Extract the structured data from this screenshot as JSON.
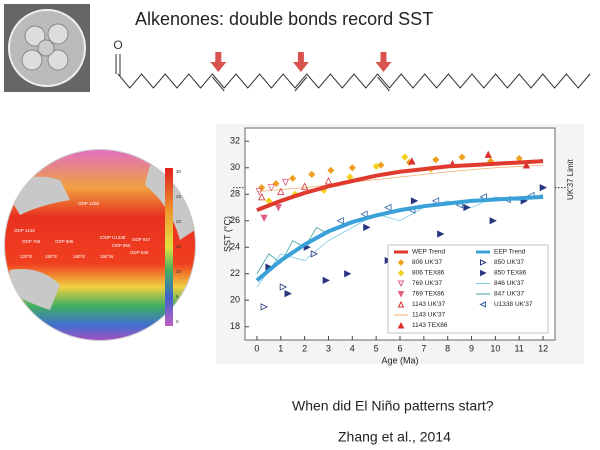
{
  "title": "Alkenones: double bonds record SST",
  "question": "When did El Niño patterns start?",
  "citation": "Zhang et al., 2014",
  "molecule_atom": "O",
  "map": {
    "labels": [
      "ODP 1208",
      "ODP 1143",
      "ODP 769",
      "ODP 806",
      "IODP U1338",
      "ODP 847",
      "ODP 850",
      "ODP 846",
      "120°E",
      "150°E",
      "180°E",
      "150°W"
    ],
    "colorbar_ticks": [
      30,
      25,
      20,
      15,
      10,
      5,
      0
    ]
  },
  "chart_data": {
    "type": "scatter",
    "x_label": "Age (Ma)",
    "y_label": "SST (°C)",
    "xlim": [
      -0.5,
      12.5
    ],
    "ylim": [
      17,
      33
    ],
    "xticks": [
      0,
      1,
      2,
      3,
      4,
      5,
      6,
      7,
      8,
      9,
      10,
      11,
      12
    ],
    "yticks": [
      18,
      20,
      22,
      24,
      26,
      28,
      30,
      32
    ],
    "limit": {
      "label": "UK′37 Limit",
      "value": 28.5
    },
    "series": [
      {
        "name": "WEP Trend",
        "color": "#e03a2f",
        "mode": "trend",
        "x": [
          0,
          1,
          2,
          3,
          4,
          5,
          6,
          7,
          8,
          9,
          10,
          11,
          12
        ],
        "values": [
          26.8,
          27.5,
          28.1,
          28.6,
          29.0,
          29.4,
          29.7,
          29.9,
          30.1,
          30.2,
          30.3,
          30.4,
          30.5
        ]
      },
      {
        "name": "806 UK′37",
        "color": "#f0a020",
        "marker": "diamond",
        "filled": true,
        "x": [
          0.2,
          0.8,
          1.5,
          2.3,
          3.1,
          4.0,
          5.2,
          6.4,
          7.5,
          8.6,
          9.8,
          11.0
        ],
        "values": [
          28.5,
          28.8,
          29.2,
          29.5,
          29.8,
          30.0,
          30.2,
          30.4,
          30.6,
          30.8,
          30.5,
          30.7
        ]
      },
      {
        "name": "806 TEX86",
        "color": "#f2d020",
        "marker": "diamond",
        "filled": true,
        "x": [
          0.5,
          1.6,
          2.8,
          3.9,
          5.0,
          6.2,
          7.3
        ],
        "values": [
          27.5,
          28.0,
          28.3,
          29.3,
          30.1,
          30.8,
          29.9
        ]
      },
      {
        "name": "769 UK′37",
        "color": "#e06080",
        "marker": "triangle-down",
        "filled": false,
        "x": [
          0.1,
          0.6,
          1.2
        ],
        "values": [
          28.2,
          28.5,
          28.9
        ]
      },
      {
        "name": "769 TEX86",
        "color": "#e06080",
        "marker": "triangle-down",
        "filled": true,
        "x": [
          0.3,
          0.9
        ],
        "values": [
          26.2,
          27.0
        ]
      },
      {
        "name": "1143 UK′37",
        "color": "#d83030",
        "marker": "triangle-up",
        "filled": false,
        "x": [
          0.2,
          1.0,
          2.0,
          3.0
        ],
        "values": [
          27.8,
          28.2,
          28.6,
          29.0
        ]
      },
      {
        "name": "1143 UK′37",
        "color": "#f0b070",
        "mode": "line",
        "x": [
          0,
          2,
          4,
          6,
          8,
          10,
          12
        ],
        "values": [
          28.2,
          28.5,
          28.9,
          29.3,
          29.7,
          30.0,
          30.2
        ]
      },
      {
        "name": "1143 TEX86",
        "color": "#d83030",
        "marker": "triangle-up",
        "filled": true,
        "x": [
          6.5,
          8.2,
          9.7,
          11.3
        ],
        "values": [
          30.5,
          30.3,
          31.0,
          30.2
        ]
      },
      {
        "name": "EEP Trend",
        "color": "#3aa0d8",
        "mode": "trend",
        "x": [
          0,
          1,
          2,
          3,
          4,
          5,
          6,
          7,
          8,
          9,
          10,
          11,
          12
        ],
        "values": [
          21.5,
          23.0,
          24.2,
          25.2,
          25.9,
          26.4,
          26.8,
          27.1,
          27.3,
          27.5,
          27.6,
          27.7,
          27.8
        ]
      },
      {
        "name": "850 UK′37",
        "color": "#2a3580",
        "marker": "triangle-right",
        "filled": false,
        "x": [
          0.3,
          1.1,
          2.4
        ],
        "values": [
          19.5,
          21.0,
          23.5
        ]
      },
      {
        "name": "850 TEX86",
        "color": "#2a3580",
        "marker": "triangle-right",
        "filled": true,
        "x": [
          0.5,
          1.3,
          2.1,
          2.9,
          3.8,
          4.6,
          5.5,
          6.6,
          7.7,
          8.8,
          9.9,
          11.2,
          12.0
        ],
        "values": [
          22.5,
          20.5,
          24.0,
          21.5,
          22.0,
          25.5,
          23.0,
          27.5,
          25.0,
          27.0,
          26.0,
          27.5,
          28.5
        ]
      },
      {
        "name": "846 UK′37",
        "color": "#80c8e8",
        "mode": "line",
        "x": [
          0,
          1,
          2,
          3,
          4,
          5,
          6,
          7,
          8,
          9,
          10,
          11,
          12
        ],
        "values": [
          21.0,
          23.5,
          23.0,
          24.5,
          25.5,
          26.5,
          26.0,
          27.0,
          27.5,
          27.0,
          27.8,
          27.5,
          28.0
        ]
      },
      {
        "name": "847 UK′37",
        "color": "#40a0a0",
        "mode": "line",
        "x": [
          0,
          0.5,
          1,
          1.5,
          2,
          2.5,
          3
        ],
        "values": [
          22,
          23.5,
          22.8,
          24.5,
          24,
          25.5,
          25
        ]
      },
      {
        "name": "U1338 UK′37",
        "color": "#3060a0",
        "marker": "triangle-left",
        "filled": false,
        "x": [
          3.5,
          4.5,
          5.5,
          6.5,
          7.5,
          8.5,
          9.5,
          10.5,
          11.5
        ],
        "values": [
          26,
          26.5,
          27,
          26.8,
          27.5,
          27.2,
          27.8,
          27.6,
          27.9
        ]
      }
    ]
  }
}
